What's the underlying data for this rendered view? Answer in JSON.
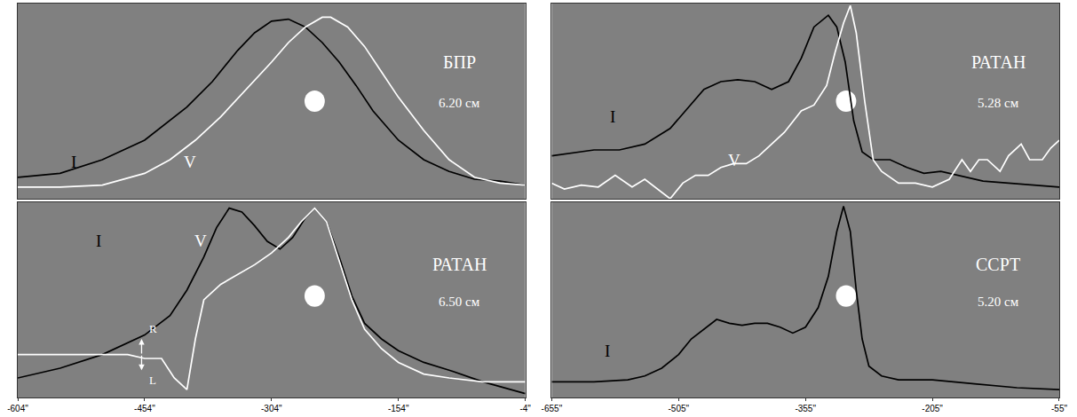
{
  "chart_data": [
    {
      "type": "line",
      "title": "БПР",
      "subtitle": "6.20 см",
      "xlim": [
        -604,
        -4
      ],
      "ylim": [
        0,
        1
      ],
      "tick_labels": false,
      "grid": false,
      "spot": {
        "x": -253,
        "y": 0.5
      },
      "series": [
        {
          "name": "I",
          "color": "#000000",
          "x": [
            -604,
            -554,
            -504,
            -454,
            -404,
            -374,
            -344,
            -324,
            -304,
            -284,
            -264,
            -244,
            -224,
            -204,
            -184,
            -154,
            -124,
            -94,
            -64,
            -34,
            -4
          ],
          "values": [
            0.11,
            0.13,
            0.2,
            0.3,
            0.47,
            0.6,
            0.76,
            0.85,
            0.91,
            0.92,
            0.88,
            0.8,
            0.7,
            0.58,
            0.45,
            0.3,
            0.2,
            0.14,
            0.1,
            0.09,
            0.07
          ]
        },
        {
          "name": "V",
          "color": "#ffffff",
          "x": [
            -604,
            -554,
            -504,
            -454,
            -424,
            -394,
            -364,
            -334,
            -304,
            -284,
            -264,
            -244,
            -234,
            -214,
            -194,
            -174,
            -154,
            -124,
            -94,
            -64,
            -34,
            -4
          ],
          "values": [
            0.06,
            0.06,
            0.07,
            0.13,
            0.2,
            0.3,
            0.42,
            0.56,
            0.7,
            0.8,
            0.88,
            0.93,
            0.93,
            0.88,
            0.78,
            0.65,
            0.52,
            0.35,
            0.2,
            0.11,
            0.08,
            0.07
          ]
        }
      ]
    },
    {
      "type": "line",
      "title": "РАТАН",
      "subtitle": "5.28 см",
      "xlim": [
        -655,
        -55
      ],
      "ylim": [
        0,
        1
      ],
      "tick_labels": false,
      "grid": false,
      "spot": {
        "x": -307,
        "y": 0.5
      },
      "series": [
        {
          "name": "I",
          "color": "#000000",
          "x": [
            -655,
            -605,
            -575,
            -545,
            -515,
            -495,
            -475,
            -455,
            -435,
            -415,
            -395,
            -375,
            -360,
            -345,
            -328,
            -318,
            -308,
            -298,
            -288,
            -275,
            -255,
            -235,
            -215,
            -195,
            -175,
            -145,
            -115,
            -85,
            -55
          ],
          "values": [
            0.22,
            0.25,
            0.25,
            0.28,
            0.36,
            0.46,
            0.56,
            0.6,
            0.61,
            0.6,
            0.56,
            0.6,
            0.72,
            0.88,
            0.94,
            0.88,
            0.7,
            0.4,
            0.24,
            0.2,
            0.2,
            0.16,
            0.13,
            0.14,
            0.12,
            0.09,
            0.08,
            0.07,
            0.06
          ]
        },
        {
          "name": "V",
          "color": "#ffffff",
          "x": [
            -655,
            -640,
            -620,
            -600,
            -580,
            -560,
            -545,
            -530,
            -515,
            -500,
            -485,
            -470,
            -455,
            -440,
            -425,
            -410,
            -395,
            -380,
            -360,
            -345,
            -330,
            -320,
            -310,
            -302,
            -295,
            -285,
            -275,
            -265,
            -245,
            -225,
            -205,
            -185,
            -170,
            -160,
            -150,
            -140,
            -125,
            -115,
            -100,
            -90,
            -75,
            -65,
            -55
          ],
          "values": [
            0.08,
            0.05,
            0.07,
            0.06,
            0.12,
            0.06,
            0.1,
            0.05,
            0.0,
            0.08,
            0.12,
            0.12,
            0.16,
            0.18,
            0.18,
            0.22,
            0.28,
            0.34,
            0.45,
            0.48,
            0.58,
            0.75,
            0.9,
            0.99,
            0.85,
            0.5,
            0.2,
            0.14,
            0.08,
            0.08,
            0.06,
            0.1,
            0.2,
            0.14,
            0.2,
            0.2,
            0.14,
            0.22,
            0.28,
            0.2,
            0.2,
            0.26,
            0.3
          ]
        }
      ]
    },
    {
      "type": "line",
      "title": "РАТАН",
      "subtitle": "6.50 см",
      "xlim": [
        -604,
        -4
      ],
      "ylim": [
        0,
        1
      ],
      "tick_labels": "x",
      "grid": false,
      "xticks": [
        {
          "value": -604,
          "label": "-604\""
        },
        {
          "value": -454,
          "label": "-454\""
        },
        {
          "value": -304,
          "label": "-304\""
        },
        {
          "value": -154,
          "label": "-154\""
        },
        {
          "value": -4,
          "label": "-4\""
        }
      ],
      "spot": {
        "x": -253,
        "y": 0.52
      },
      "annotations": [
        "R",
        "L"
      ],
      "series": [
        {
          "name": "I",
          "color": "#000000",
          "x": [
            -604,
            -554,
            -504,
            -454,
            -424,
            -404,
            -384,
            -369,
            -354,
            -339,
            -324,
            -309,
            -294,
            -279,
            -264,
            -253,
            -239,
            -224,
            -209,
            -194,
            -174,
            -154,
            -124,
            -94,
            -54,
            -4
          ],
          "values": [
            0.1,
            0.15,
            0.22,
            0.32,
            0.42,
            0.55,
            0.72,
            0.87,
            0.97,
            0.95,
            0.88,
            0.8,
            0.76,
            0.82,
            0.92,
            0.97,
            0.9,
            0.72,
            0.52,
            0.38,
            0.3,
            0.24,
            0.18,
            0.14,
            0.08,
            0.02
          ]
        },
        {
          "name": "V",
          "color": "#ffffff",
          "x": [
            -604,
            -554,
            -504,
            -474,
            -454,
            -434,
            -419,
            -404,
            -394,
            -384,
            -364,
            -344,
            -324,
            -304,
            -284,
            -269,
            -253,
            -239,
            -224,
            -209,
            -194,
            -174,
            -154,
            -124,
            -94,
            -54,
            -4
          ],
          "values": [
            0.22,
            0.22,
            0.22,
            0.22,
            0.2,
            0.2,
            0.1,
            0.04,
            0.3,
            0.5,
            0.58,
            0.63,
            0.68,
            0.74,
            0.82,
            0.9,
            0.97,
            0.9,
            0.7,
            0.5,
            0.35,
            0.25,
            0.18,
            0.12,
            0.1,
            0.08,
            0.08
          ]
        }
      ]
    },
    {
      "type": "line",
      "title": "ССРТ",
      "subtitle": "5.20 см",
      "xlim": [
        -655,
        -55
      ],
      "ylim": [
        0,
        1
      ],
      "tick_labels": "x",
      "grid": false,
      "xticks": [
        {
          "value": -655,
          "label": "-655\""
        },
        {
          "value": -505,
          "label": "-505\""
        },
        {
          "value": -355,
          "label": "-355\""
        },
        {
          "value": -205,
          "label": "-205\""
        },
        {
          "value": -55,
          "label": "-55\""
        }
      ],
      "spot": {
        "x": -307,
        "y": 0.52
      },
      "series": [
        {
          "name": "I",
          "color": "#000000",
          "x": [
            -655,
            -605,
            -565,
            -545,
            -525,
            -505,
            -490,
            -475,
            -460,
            -445,
            -430,
            -415,
            -400,
            -385,
            -370,
            -355,
            -340,
            -328,
            -318,
            -310,
            -302,
            -295,
            -288,
            -280,
            -265,
            -245,
            -205,
            -155,
            -105,
            -55
          ],
          "values": [
            0.08,
            0.08,
            0.09,
            0.11,
            0.15,
            0.22,
            0.3,
            0.35,
            0.4,
            0.38,
            0.37,
            0.38,
            0.38,
            0.36,
            0.33,
            0.36,
            0.46,
            0.62,
            0.85,
            0.98,
            0.85,
            0.55,
            0.3,
            0.16,
            0.11,
            0.09,
            0.09,
            0.07,
            0.05,
            0.04
          ]
        }
      ]
    }
  ]
}
